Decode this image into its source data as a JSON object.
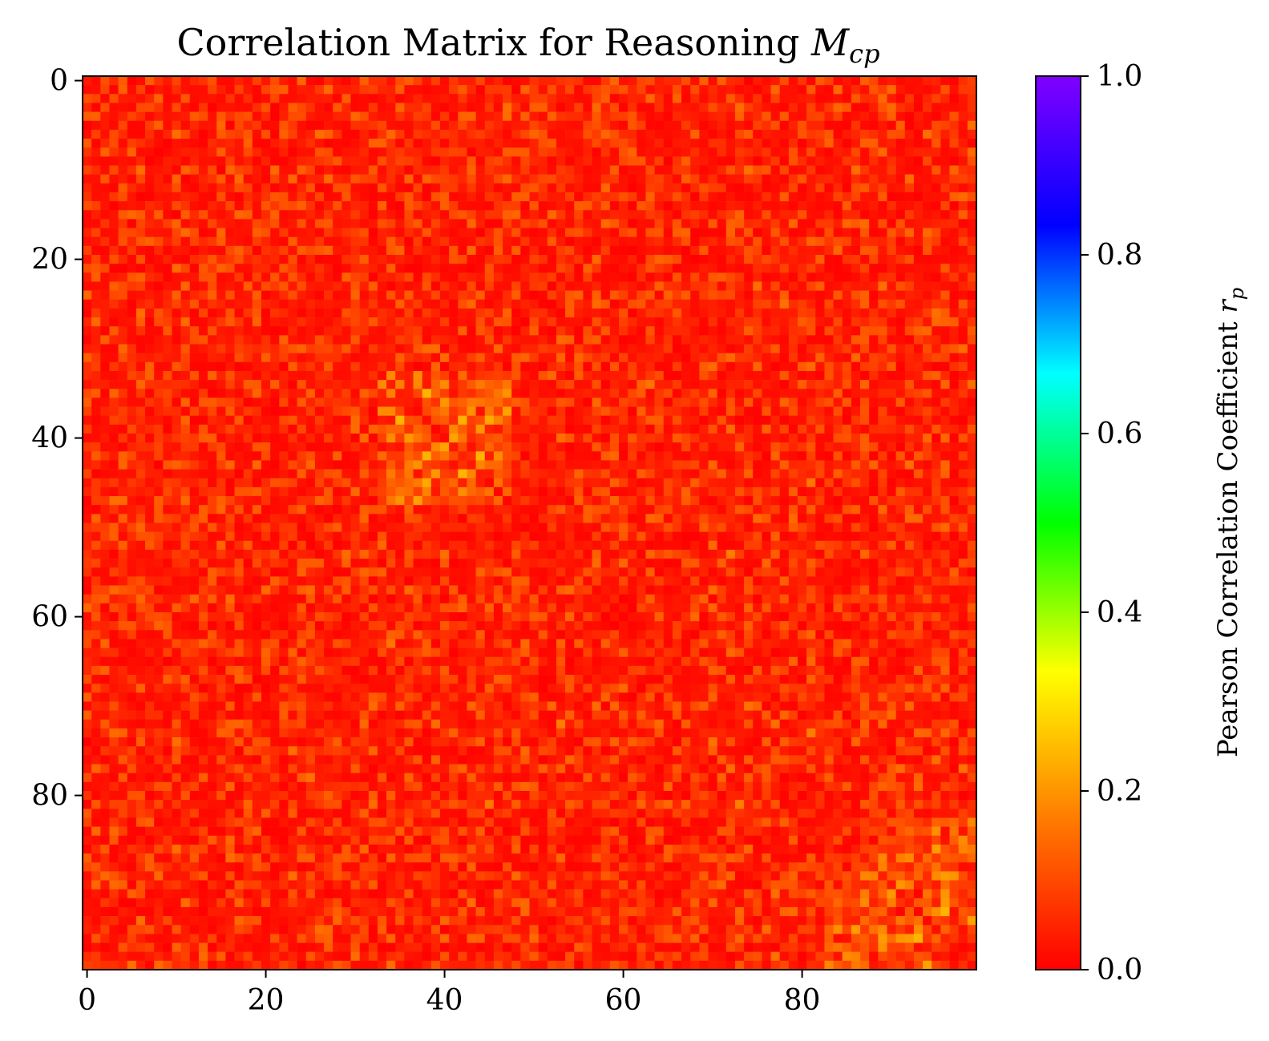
{
  "chart_data": {
    "type": "heatmap",
    "title_prefix": "Correlation Matrix for Reasoning ",
    "title_symbol": "M",
    "title_subscript": "cp",
    "rows": 100,
    "cols": 100,
    "x_ticks": [
      0,
      20,
      40,
      60,
      80
    ],
    "y_ticks": [
      0,
      20,
      40,
      60,
      80
    ],
    "value_range": [
      0.0,
      1.0
    ],
    "colormap": "gist_rainbow_r",
    "colormap_stops": [
      "#ff0000",
      "#ff7a00",
      "#ffff00",
      "#00ff00",
      "#00ffff",
      "#0000ff",
      "#8000ff"
    ],
    "colorbar": {
      "label_prefix": "Pearson Correlation Coefficient ",
      "label_symbol": "r",
      "label_subscript": "p",
      "ticks": [
        "0.0",
        "0.2",
        "0.4",
        "0.6",
        "0.8",
        "1.0"
      ]
    },
    "value_distribution": "mostly 0.00–0.12, occasional cells up to ~0.22",
    "highlight_clusters": [
      {
        "rows": [
          34,
          47
        ],
        "cols": [
          33,
          47
        ],
        "level": 0.12
      },
      {
        "rows": [
          88,
          99
        ],
        "cols": [
          83,
          95
        ],
        "level": 0.1
      }
    ]
  }
}
